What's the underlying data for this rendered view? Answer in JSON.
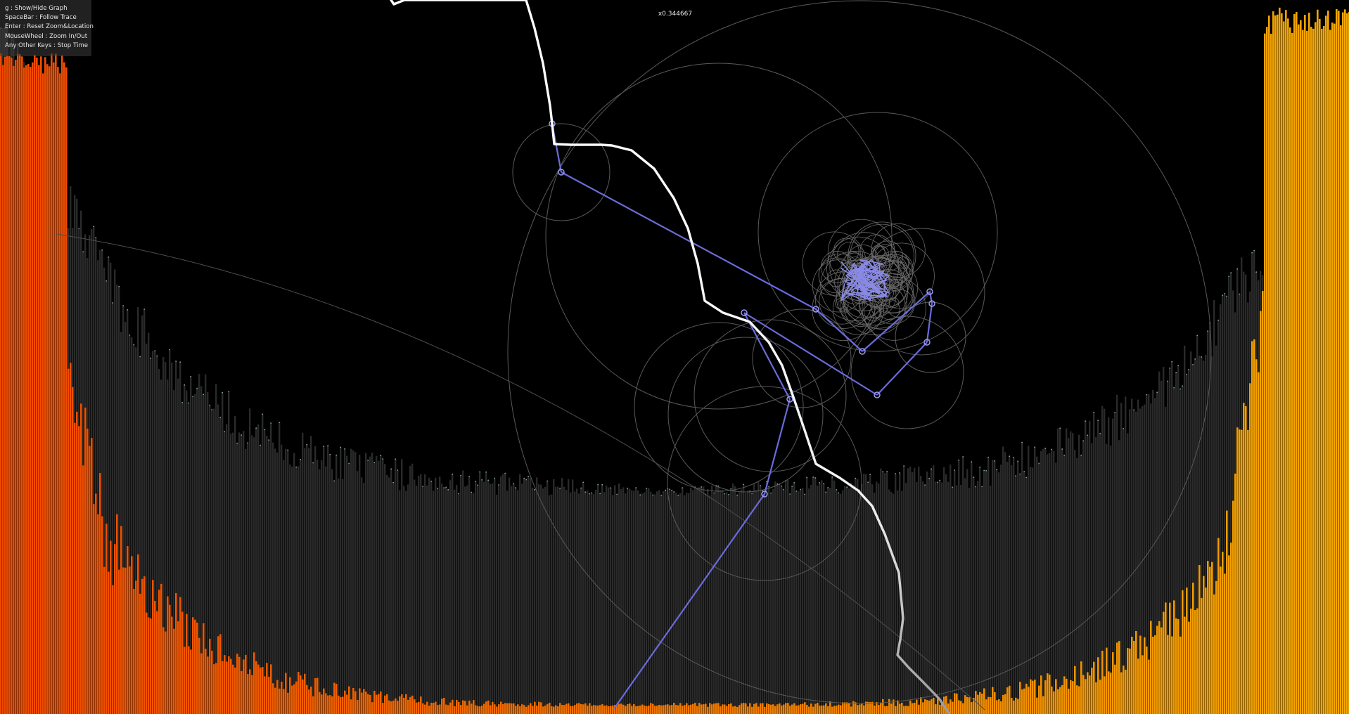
{
  "help": {
    "lines": [
      "g : Show/Hide Graph",
      "SpaceBar : Follow Trace",
      "Enter : Reset Zoom&Location",
      "MouseWheel : Zoom In/Out",
      "Any Other Keys : Stop Time"
    ]
  },
  "zoom_label": "x0.344667",
  "colors": {
    "background": "#000000",
    "spectrum_gray": "#2a2a2a",
    "spectrum_left": "#f04a00",
    "spectrum_mid": "#f07800",
    "spectrum_right": "#f4a800",
    "epicycle_arm": "#6b6bdc",
    "epicycle_circle": "#5a5a5a",
    "trace": "#ffffff"
  }
}
